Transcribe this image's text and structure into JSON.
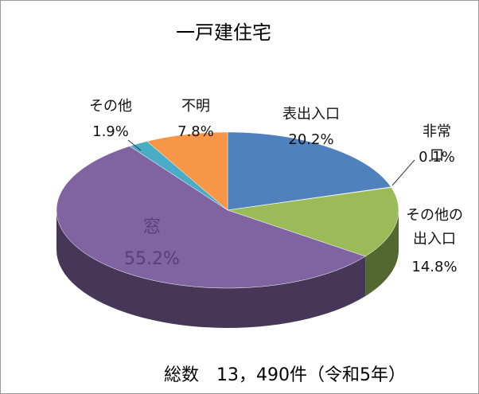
{
  "chart_data": {
    "type": "pie",
    "title": "一戸建住宅",
    "categories": [
      "表出入口",
      "非常口",
      "その他の出入口",
      "窓",
      "その他",
      "不明"
    ],
    "values": [
      20.2,
      0.1,
      14.8,
      55.2,
      1.9,
      7.8
    ],
    "value_labels": [
      "20.2%",
      "0.1%",
      "14.8%",
      "55.2%",
      "1.9%",
      "7.8%"
    ],
    "colors": [
      "#4f81bd",
      "#c0504d",
      "#9bbb59",
      "#8064a2",
      "#4bacc6",
      "#f79646"
    ],
    "note": "総数　13，490件（令和5年）"
  }
}
